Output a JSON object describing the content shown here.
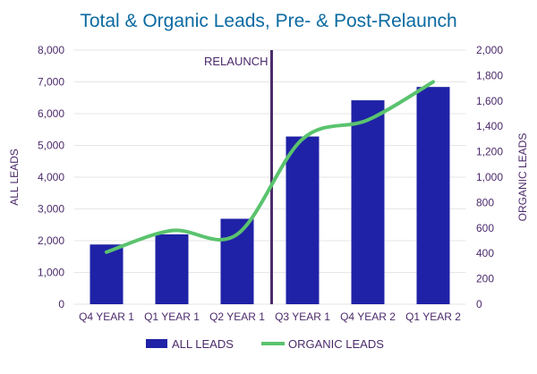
{
  "chart_data": {
    "type": "bar+line",
    "title": "Total & Organic Leads, Pre- & Post-Relaunch",
    "categories": [
      "Q4 YEAR 1",
      "Q1 YEAR 1",
      "Q2 YEAR 1",
      "Q3 YEAR 1",
      "Q4 YEAR 2",
      "Q1 YEAR 2"
    ],
    "series": [
      {
        "name": "ALL LEADS",
        "type": "bar",
        "axis": "left",
        "values": [
          1880,
          2200,
          2690,
          5280,
          6420,
          6840
        ],
        "color": "#1f22a6"
      },
      {
        "name": "ORGANIC LEADS",
        "type": "line",
        "axis": "right",
        "smooth": true,
        "values": [
          410,
          580,
          550,
          1300,
          1450,
          1750
        ],
        "color": "#5ac36e"
      }
    ],
    "ylabel": "ALL LEADS",
    "y2label": "ORGANIC LEADS",
    "ylim": [
      0,
      8000
    ],
    "y2lim": [
      0,
      2000
    ],
    "yticks": [
      "0",
      "1,000",
      "2,000",
      "3,000",
      "4,000",
      "5,000",
      "6,000",
      "7,000",
      "8,000"
    ],
    "y2ticks": [
      "0",
      "200",
      "400",
      "600",
      "800",
      "1,000",
      "1,200",
      "1,400",
      "1,600",
      "1,800",
      "2,000"
    ],
    "annotation": {
      "label": "RELAUNCH",
      "between": [
        "Q2 YEAR 1",
        "Q3 YEAR 1"
      ],
      "color": "#4b2a6b"
    },
    "grid": true,
    "legend": "bottom",
    "colors": {
      "title": "#0b6aa2",
      "axis_text": "#4b2a6b",
      "grid": "#e6e6e6"
    }
  }
}
